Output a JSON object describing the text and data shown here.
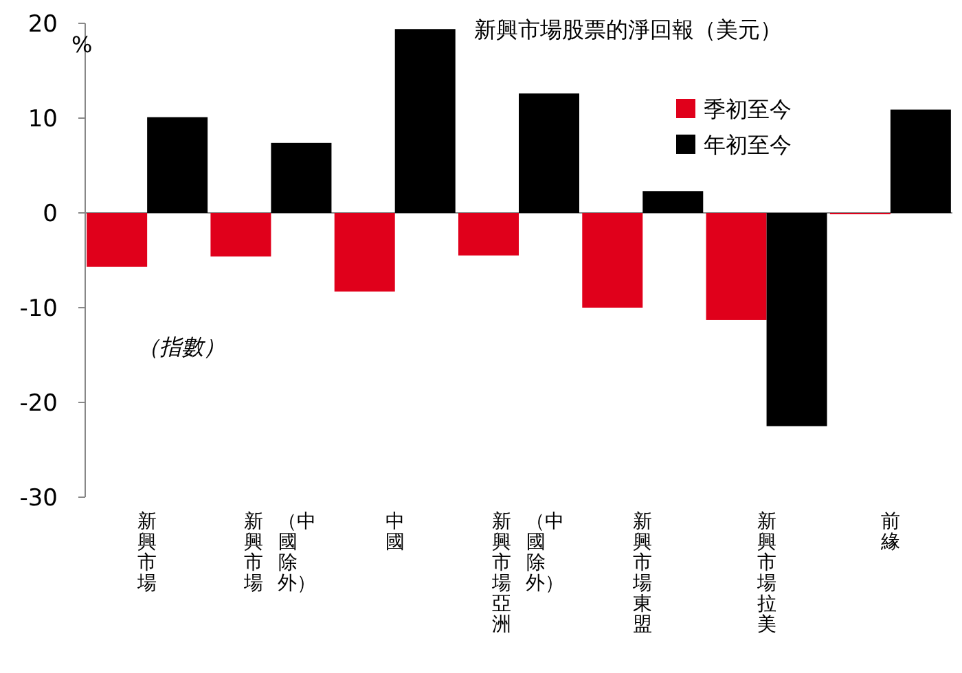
{
  "chart_data": {
    "type": "bar",
    "title": "新興市場股票的淨回報（美元）",
    "ylabel": "%",
    "categories": [
      "新興市場",
      "新興市場（中國除外）",
      "中國",
      "新興市場亞洲（中國除外）",
      "新興市場東盟",
      "新興市場拉美",
      "前緣"
    ],
    "series": [
      {
        "name": "季初至今",
        "color": "#e0001b",
        "values": [
          -5.7,
          -4.6,
          -8.3,
          -4.5,
          -10.0,
          -11.3,
          -0.1
        ]
      },
      {
        "name": "年初至今",
        "color": "#000000",
        "values": [
          10.1,
          7.4,
          19.4,
          12.6,
          2.3,
          -22.5,
          10.9
        ]
      }
    ],
    "ylim": [
      -30,
      20
    ],
    "yticks": [
      -30,
      -20,
      -10,
      0,
      10,
      20
    ],
    "legend": "top right",
    "annotations": [
      "（指數）"
    ]
  }
}
